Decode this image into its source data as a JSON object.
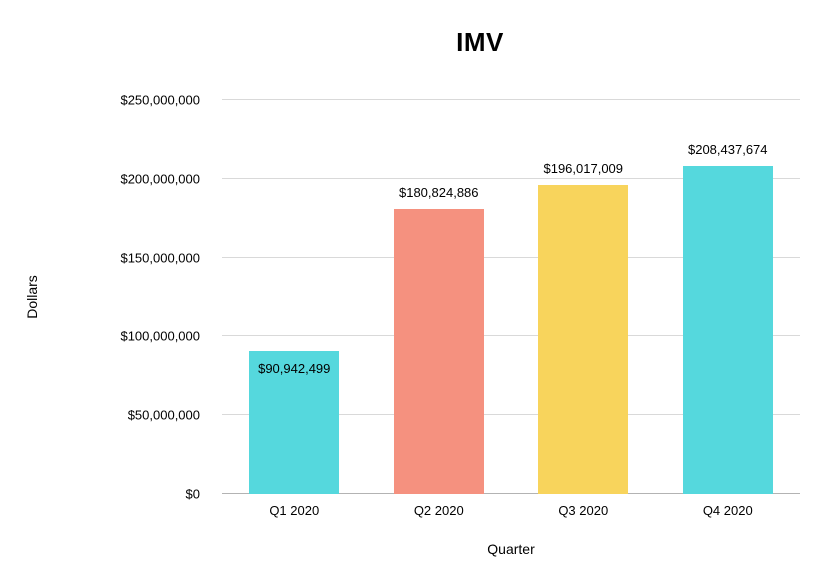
{
  "chart_data": {
    "type": "bar",
    "title": "IMV",
    "xlabel": "Quarter",
    "ylabel": "Dollars",
    "categories": [
      "Q1 2020",
      "Q2 2020",
      "Q3 2020",
      "Q4 2020"
    ],
    "values": [
      90942499,
      180824886,
      196017009,
      208437674
    ],
    "value_labels": [
      "$90,942,499",
      "$180,824,886",
      "$196,017,009",
      "$208,437,674"
    ],
    "bar_colors": [
      "#55D8DD",
      "#F5917F",
      "#F8D45C",
      "#55D8DD"
    ],
    "label_placement": [
      "inside",
      "above",
      "above",
      "above"
    ],
    "ylim": [
      0,
      250000000
    ],
    "yticks": [
      {
        "value": 0,
        "label": "$0"
      },
      {
        "value": 50000000,
        "label": "$50,000,000"
      },
      {
        "value": 100000000,
        "label": "$100,000,000"
      },
      {
        "value": 150000000,
        "label": "$150,000,000"
      },
      {
        "value": 200000000,
        "label": "$200,000,000"
      },
      {
        "value": 250000000,
        "label": "$250,000,000"
      }
    ],
    "grid": "horizontal",
    "legend": "none",
    "background": "#ffffff",
    "text_color": "#000000"
  }
}
